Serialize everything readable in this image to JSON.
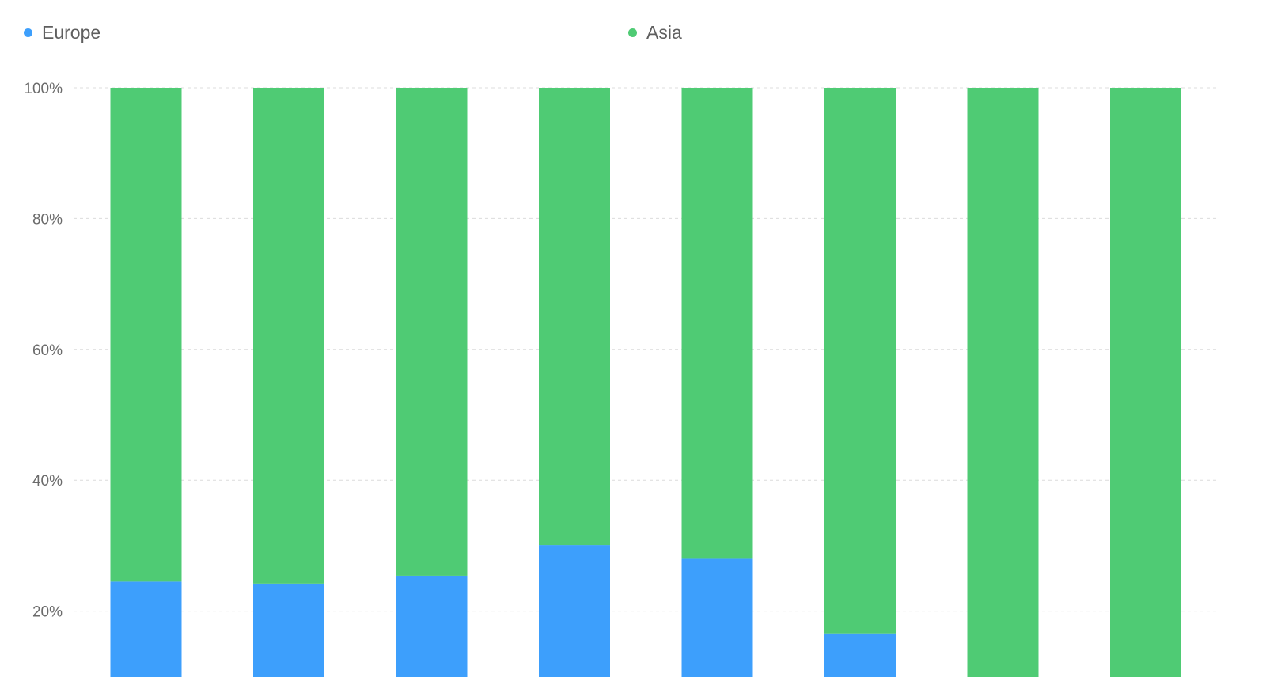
{
  "colors": {
    "europe": "#3d9ffc",
    "asia": "#4fcb74",
    "grid": "#dcdcdc",
    "tick_text": "#6b6b6b"
  },
  "legend": {
    "europe_label": "Europe",
    "asia_label": "Asia"
  },
  "chart_data": {
    "type": "bar",
    "stacked": true,
    "normalized": true,
    "categories": [
      "",
      "",
      "",
      "",
      "",
      "",
      "",
      ""
    ],
    "series": [
      {
        "name": "Europe",
        "values": [
          24.5,
          24.2,
          25.4,
          30.1,
          28.0,
          16.6,
          0,
          0
        ]
      },
      {
        "name": "Asia",
        "values": [
          75.5,
          75.8,
          74.6,
          69.9,
          72.0,
          83.4,
          100,
          100
        ]
      }
    ],
    "y_ticks": [
      "20%",
      "40%",
      "60%",
      "80%",
      "100%"
    ],
    "ylim": [
      0,
      100
    ],
    "grid": true,
    "legend_position": "top"
  }
}
